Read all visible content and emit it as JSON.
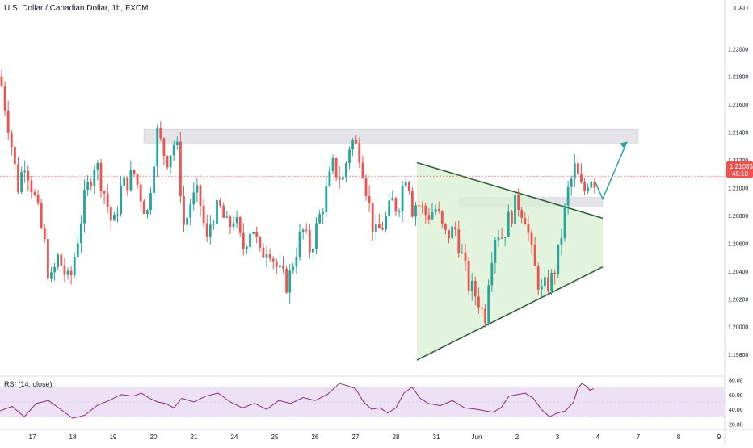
{
  "header": {
    "symbol_title": "U.S. Dollar / Canadian Dollar, 1h, FXCM",
    "currency": "CAD"
  },
  "price_tag": {
    "price": "1.21083",
    "countdown": "45:10"
  },
  "rsi_panel": {
    "label": "RSI (14, close)"
  },
  "colors": {
    "up": "#26a69a",
    "down": "#ef5350",
    "triangle_fill": "#d8f0d3",
    "triangle_line": "#2e5e3a",
    "zone": "#e3e3e8",
    "arrow": "#26a69a",
    "rsi_line": "#8e2a7a",
    "rsi_band": "#ede2f5",
    "price_tag": "#ef5350"
  },
  "chart_data": [
    {
      "type": "candlestick",
      "title": "U.S. Dollar / Canadian Dollar, 1h, FXCM",
      "x_tick_labels": [
        "17",
        "18",
        "19",
        "20",
        "21",
        "24",
        "25",
        "26",
        "27",
        "28",
        "31",
        "Jun",
        "2",
        "3",
        "4",
        "7",
        "8",
        "9"
      ],
      "y_ticks": [
        1.198,
        1.2,
        1.202,
        1.204,
        1.206,
        1.208,
        1.21,
        1.212,
        1.214,
        1.216,
        1.218,
        1.22
      ],
      "ylim": [
        1.1965,
        1.2235
      ],
      "last_price": 1.21083,
      "path_x_index": [
        0,
        12,
        22,
        31,
        44,
        55,
        62,
        72,
        86,
        104,
        118,
        130,
        140,
        150,
        166,
        182,
        194,
        206,
        218,
        228,
        236,
        246,
        256,
        262,
        272,
        282,
        290,
        300,
        312,
        322,
        332,
        344,
        356,
        362,
        374,
        384,
        396,
        412,
        424,
        434,
        446,
        456,
        464,
        476,
        486,
        492,
        504,
        510,
        516,
        528,
        540,
        550,
        564,
        572,
        580,
        592,
        600,
        606,
        614,
        622,
        628,
        640,
        650,
        660,
        670,
        684,
        692,
        702,
        712,
        716,
        722,
        730,
        736,
        746
      ],
      "path_close": [
        1.218,
        1.214,
        1.21,
        1.212,
        1.209,
        1.206,
        1.203,
        1.205,
        1.203,
        1.209,
        1.212,
        1.2095,
        1.207,
        1.21,
        1.211,
        1.208,
        1.214,
        1.212,
        1.2135,
        1.207,
        1.209,
        1.2095,
        1.206,
        1.208,
        1.2085,
        1.207,
        1.208,
        1.2055,
        1.2075,
        1.205,
        1.206,
        1.204,
        1.203,
        1.2045,
        1.207,
        1.2055,
        1.208,
        1.2115,
        1.2105,
        1.2135,
        1.2125,
        1.209,
        1.2065,
        1.2075,
        1.209,
        1.2085,
        1.2115,
        1.2085,
        1.209,
        1.208,
        1.2085,
        1.2065,
        1.207,
        1.205,
        1.203,
        1.202,
        1.2005,
        1.2045,
        1.207,
        1.2065,
        1.2075,
        1.209,
        1.208,
        1.2045,
        1.2025,
        1.2035,
        1.2055,
        1.2095,
        1.2115,
        1.2105,
        1.2095,
        1.211,
        1.2105,
        1.2105
      ],
      "candles_approx_count": 180
    },
    {
      "type": "line",
      "title": "RSI (14, close)",
      "y_ticks": [
        20,
        40,
        60,
        80
      ],
      "band": [
        30,
        70
      ],
      "ylim": [
        15,
        85
      ],
      "x_index": [
        0,
        15,
        30,
        45,
        60,
        75,
        90,
        105,
        120,
        135,
        150,
        165,
        175,
        185,
        195,
        205,
        215,
        225,
        240,
        255,
        270,
        285,
        300,
        315,
        330,
        345,
        360,
        375,
        390,
        405,
        420,
        430,
        440,
        450,
        460,
        470,
        480,
        490,
        500,
        510,
        520,
        530,
        545,
        560,
        575,
        590,
        600,
        610,
        620,
        630,
        640,
        650,
        660,
        670,
        680,
        690,
        700,
        710,
        715,
        720,
        725,
        730,
        735
      ],
      "values": [
        38,
        44,
        30,
        48,
        52,
        40,
        28,
        32,
        45,
        52,
        60,
        58,
        62,
        55,
        50,
        48,
        42,
        55,
        50,
        58,
        62,
        50,
        42,
        48,
        40,
        52,
        48,
        56,
        52,
        60,
        75,
        72,
        68,
        50,
        40,
        42,
        35,
        42,
        62,
        70,
        55,
        48,
        45,
        52,
        42,
        40,
        38,
        36,
        42,
        58,
        60,
        62,
        55,
        40,
        30,
        35,
        38,
        50,
        68,
        75,
        72,
        66,
        68
      ]
    }
  ],
  "annotations": {
    "resistance_zone": [
      1.2132,
      1.2142
    ],
    "mini_zone": [
      1.2086,
      1.2093
    ],
    "triangle_top": [
      [
        516,
        1.2118
      ],
      [
        746,
        1.2078
      ]
    ],
    "triangle_bottom": [
      [
        516,
        1.1976
      ],
      [
        746,
        1.2043
      ]
    ],
    "projection": [
      [
        746,
        1.2092
      ],
      [
        776,
        1.2133
      ]
    ]
  }
}
